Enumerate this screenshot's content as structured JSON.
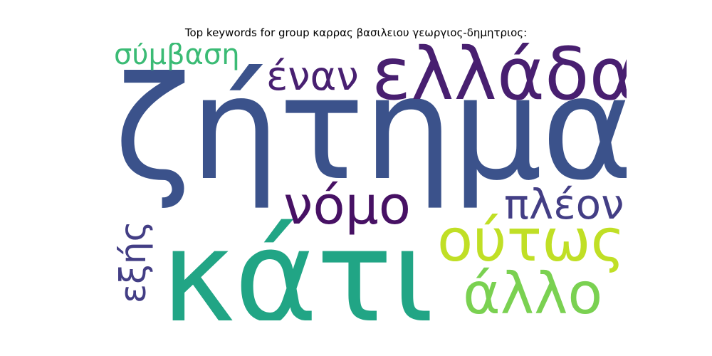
{
  "title": "Top keywords for group καρρας βασιλειου γεωργιος-δημητριος:",
  "words": {
    "zitima": {
      "text": "ζήτημα",
      "color": "#3b528b"
    },
    "kati": {
      "text": "κάτι",
      "color": "#21a585"
    },
    "ellada": {
      "text": "ελλάδα",
      "color": "#481f70"
    },
    "outos": {
      "text": "ούτως",
      "color": "#c0df25"
    },
    "allo": {
      "text": "άλλο",
      "color": "#7ad151"
    },
    "nomo": {
      "text": "νόμο",
      "color": "#471164"
    },
    "pleon": {
      "text": "πλέον",
      "color": "#433e85"
    },
    "enan": {
      "text": "έναν",
      "color": "#482071"
    },
    "symvasi": {
      "text": "σύμβαση",
      "color": "#3bbb75"
    },
    "exis": {
      "text": "εξής",
      "color": "#433e85"
    }
  }
}
